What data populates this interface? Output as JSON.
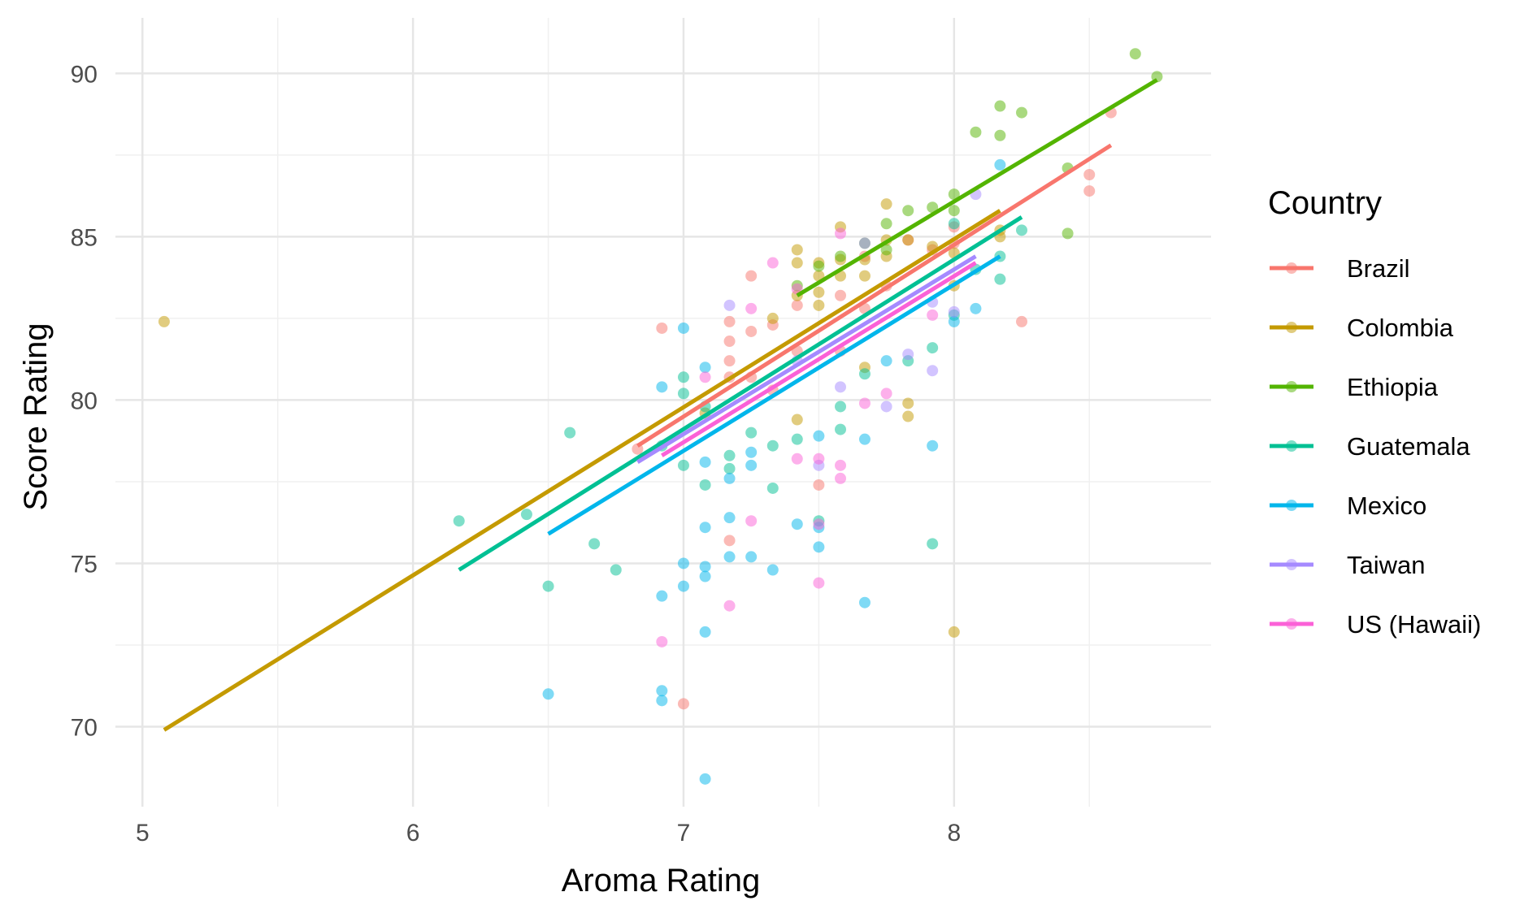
{
  "chart_data": {
    "type": "scatter",
    "xlabel": "Aroma Rating",
    "ylabel": "Score Rating",
    "xlim": [
      4.9,
      8.95
    ],
    "ylim": [
      67.55,
      91.7
    ],
    "x_ticks": [
      5,
      6,
      7,
      8
    ],
    "x_tick_labels": [
      "5",
      "6",
      "7",
      "8"
    ],
    "y_ticks": [
      70,
      75,
      80,
      85,
      90
    ],
    "y_tick_labels": [
      "70",
      "75",
      "80",
      "85",
      "90"
    ],
    "x_minor_ticks": [
      5.5,
      6.5,
      7.5,
      8.5
    ],
    "y_minor_ticks": [
      72.5,
      77.5,
      82.5,
      87.5
    ],
    "grid": true,
    "legend": {
      "title": "Country",
      "placement": "right"
    },
    "series": [
      {
        "name": "Brazil",
        "color": "#F8766D",
        "trend": {
          "x": [
            6.83,
            8.58
          ],
          "y": [
            78.6,
            87.8
          ]
        },
        "points": [
          [
            6.83,
            78.5
          ],
          [
            6.92,
            82.2
          ],
          [
            7.0,
            70.7
          ],
          [
            7.17,
            82.4
          ],
          [
            7.17,
            81.8
          ],
          [
            7.17,
            81.2
          ],
          [
            7.17,
            80.7
          ],
          [
            7.17,
            75.7
          ],
          [
            7.25,
            83.8
          ],
          [
            7.25,
            82.1
          ],
          [
            7.25,
            80.7
          ],
          [
            7.33,
            82.3
          ],
          [
            7.33,
            80.3
          ],
          [
            7.42,
            82.9
          ],
          [
            7.42,
            81.5
          ],
          [
            7.5,
            77.4
          ],
          [
            7.58,
            83.2
          ],
          [
            7.58,
            81.5
          ],
          [
            7.67,
            84.4
          ],
          [
            7.67,
            82.8
          ],
          [
            7.75,
            83.5
          ],
          [
            7.83,
            84.9
          ],
          [
            7.92,
            84.6
          ],
          [
            8.0,
            85.3
          ],
          [
            8.0,
            84.8
          ],
          [
            8.25,
            82.4
          ],
          [
            8.5,
            86.9
          ],
          [
            8.5,
            86.4
          ],
          [
            8.58,
            88.8
          ]
        ]
      },
      {
        "name": "Colombia",
        "color": "#C49A00",
        "trend": {
          "x": [
            5.08,
            8.17
          ],
          "y": [
            69.9,
            85.8
          ]
        },
        "points": [
          [
            5.08,
            82.4
          ],
          [
            7.08,
            79.6
          ],
          [
            7.33,
            82.5
          ],
          [
            7.42,
            84.6
          ],
          [
            7.42,
            84.2
          ],
          [
            7.42,
            83.2
          ],
          [
            7.42,
            79.4
          ],
          [
            7.5,
            84.2
          ],
          [
            7.5,
            83.8
          ],
          [
            7.5,
            83.3
          ],
          [
            7.5,
            82.9
          ],
          [
            7.58,
            85.3
          ],
          [
            7.58,
            84.3
          ],
          [
            7.58,
            83.8
          ],
          [
            7.67,
            84.3
          ],
          [
            7.67,
            83.8
          ],
          [
            7.67,
            81.0
          ],
          [
            7.75,
            86.0
          ],
          [
            7.75,
            84.9
          ],
          [
            7.75,
            84.4
          ],
          [
            7.83,
            84.9
          ],
          [
            7.83,
            79.9
          ],
          [
            7.83,
            79.5
          ],
          [
            7.92,
            84.7
          ],
          [
            8.0,
            84.5
          ],
          [
            8.0,
            83.5
          ],
          [
            8.0,
            72.9
          ],
          [
            8.17,
            85.2
          ],
          [
            8.17,
            85.0
          ]
        ]
      },
      {
        "name": "Ethiopia",
        "color": "#53B400",
        "trend": {
          "x": [
            7.42,
            8.75
          ],
          "y": [
            83.2,
            89.8
          ]
        },
        "points": [
          [
            7.42,
            83.5
          ],
          [
            7.5,
            84.1
          ],
          [
            7.58,
            84.4
          ],
          [
            7.67,
            84.8
          ],
          [
            7.75,
            85.4
          ],
          [
            7.75,
            84.6
          ],
          [
            7.83,
            85.8
          ],
          [
            7.92,
            85.9
          ],
          [
            8.0,
            86.3
          ],
          [
            8.0,
            85.8
          ],
          [
            8.08,
            88.2
          ],
          [
            8.17,
            89.0
          ],
          [
            8.17,
            88.1
          ],
          [
            8.25,
            88.8
          ],
          [
            8.42,
            87.1
          ],
          [
            8.42,
            85.1
          ],
          [
            8.67,
            90.6
          ],
          [
            8.75,
            89.9
          ]
        ]
      },
      {
        "name": "Guatemala",
        "color": "#00C094",
        "trend": {
          "x": [
            6.17,
            8.25
          ],
          "y": [
            74.8,
            85.6
          ]
        },
        "points": [
          [
            6.17,
            76.3
          ],
          [
            6.42,
            76.5
          ],
          [
            6.5,
            74.3
          ],
          [
            6.58,
            79.0
          ],
          [
            6.67,
            75.6
          ],
          [
            6.75,
            74.8
          ],
          [
            6.92,
            78.6
          ],
          [
            7.0,
            80.7
          ],
          [
            7.0,
            80.2
          ],
          [
            7.0,
            78.0
          ],
          [
            7.08,
            77.4
          ],
          [
            7.08,
            79.8
          ],
          [
            7.17,
            78.3
          ],
          [
            7.17,
            77.9
          ],
          [
            7.25,
            79.0
          ],
          [
            7.33,
            77.3
          ],
          [
            7.33,
            78.6
          ],
          [
            7.42,
            78.8
          ],
          [
            7.5,
            76.3
          ],
          [
            7.58,
            79.1
          ],
          [
            7.58,
            79.8
          ],
          [
            7.67,
            80.8
          ],
          [
            7.83,
            81.2
          ],
          [
            7.92,
            75.6
          ],
          [
            7.92,
            81.6
          ],
          [
            8.0,
            82.6
          ],
          [
            8.08,
            84.0
          ],
          [
            8.17,
            83.7
          ],
          [
            8.17,
            84.4
          ],
          [
            8.25,
            85.2
          ],
          [
            8.0,
            85.4
          ]
        ]
      },
      {
        "name": "Mexico",
        "color": "#00B6EB",
        "trend": {
          "x": [
            6.5,
            8.17
          ],
          "y": [
            75.9,
            84.4
          ]
        },
        "points": [
          [
            6.5,
            71.0
          ],
          [
            6.92,
            71.1
          ],
          [
            6.92,
            70.8
          ],
          [
            6.92,
            74.0
          ],
          [
            6.92,
            80.4
          ],
          [
            7.0,
            82.2
          ],
          [
            7.0,
            75.0
          ],
          [
            7.0,
            74.3
          ],
          [
            7.08,
            81.0
          ],
          [
            7.08,
            76.1
          ],
          [
            7.08,
            74.9
          ],
          [
            7.08,
            74.6
          ],
          [
            7.08,
            72.9
          ],
          [
            7.08,
            68.4
          ],
          [
            7.08,
            78.1
          ],
          [
            7.17,
            76.4
          ],
          [
            7.17,
            75.2
          ],
          [
            7.17,
            77.6
          ],
          [
            7.25,
            75.2
          ],
          [
            7.25,
            78.0
          ],
          [
            7.25,
            78.4
          ],
          [
            7.33,
            74.8
          ],
          [
            7.42,
            76.2
          ],
          [
            7.5,
            75.5
          ],
          [
            7.5,
            76.1
          ],
          [
            7.5,
            78.9
          ],
          [
            7.67,
            73.8
          ],
          [
            7.67,
            78.8
          ],
          [
            7.75,
            81.2
          ],
          [
            7.92,
            78.6
          ],
          [
            8.0,
            82.4
          ],
          [
            8.08,
            82.8
          ],
          [
            8.17,
            87.2
          ]
        ]
      },
      {
        "name": "Taiwan",
        "color": "#A58AFF",
        "trend": {
          "x": [
            6.83,
            8.08
          ],
          "y": [
            78.1,
            84.4
          ]
        },
        "points": [
          [
            7.17,
            82.9
          ],
          [
            7.42,
            81.2
          ],
          [
            7.5,
            78.0
          ],
          [
            7.58,
            80.4
          ],
          [
            7.67,
            84.8
          ],
          [
            7.75,
            79.8
          ],
          [
            7.83,
            81.4
          ],
          [
            7.92,
            80.9
          ],
          [
            7.92,
            83.0
          ],
          [
            8.0,
            82.7
          ],
          [
            8.08,
            86.3
          ]
        ]
      },
      {
        "name": "US (Hawaii)",
        "color": "#FB61D7",
        "trend": {
          "x": [
            6.92,
            8.08
          ],
          "y": [
            78.3,
            84.2
          ]
        },
        "points": [
          [
            6.92,
            72.6
          ],
          [
            7.08,
            80.7
          ],
          [
            7.17,
            73.7
          ],
          [
            7.25,
            76.3
          ],
          [
            7.25,
            82.8
          ],
          [
            7.33,
            84.2
          ],
          [
            7.42,
            83.4
          ],
          [
            7.42,
            78.2
          ],
          [
            7.5,
            78.2
          ],
          [
            7.5,
            76.2
          ],
          [
            7.5,
            74.4
          ],
          [
            7.58,
            78.0
          ],
          [
            7.58,
            77.6
          ],
          [
            7.58,
            85.1
          ],
          [
            7.67,
            79.9
          ],
          [
            7.75,
            80.2
          ],
          [
            7.92,
            82.6
          ]
        ]
      }
    ]
  }
}
